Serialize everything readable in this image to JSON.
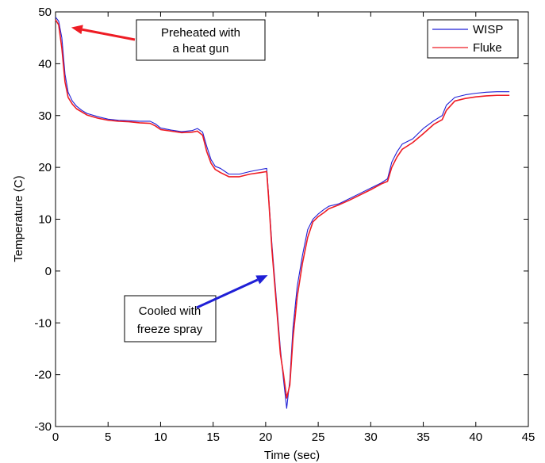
{
  "chart_data": {
    "type": "line",
    "xlabel": "Time (sec)",
    "ylabel": "Temperature (C)",
    "xlim": [
      0,
      45
    ],
    "ylim": [
      -30,
      50
    ],
    "xticks": [
      0,
      5,
      10,
      15,
      20,
      25,
      30,
      35,
      40,
      45
    ],
    "yticks": [
      -30,
      -20,
      -10,
      0,
      10,
      20,
      30,
      40,
      50
    ],
    "grid": false,
    "legend_position": "top-right",
    "series": [
      {
        "name": "WISP",
        "color": "#1f1fd6",
        "x": [
          0,
          0.3,
          0.6,
          0.9,
          1.2,
          1.6,
          2.0,
          2.5,
          3,
          4,
          5,
          6,
          7,
          8,
          9,
          9.5,
          10,
          11,
          12,
          13,
          13.5,
          14,
          14.4,
          14.8,
          15.2,
          15.7,
          16.5,
          17.5,
          18.5,
          19.5,
          20.1,
          20.3,
          20.6,
          21.0,
          21.4,
          21.7,
          22.0,
          22.3,
          22.6,
          23.0,
          23.5,
          24.0,
          24.5,
          25.0,
          25.5,
          26,
          27,
          28,
          29,
          30,
          31,
          31.6,
          32,
          32.5,
          33,
          34,
          35,
          36,
          36.8,
          37.2,
          38,
          39,
          40,
          41,
          42,
          43.2
        ],
        "y": [
          49,
          48.2,
          45,
          38,
          34.5,
          32.8,
          31.8,
          31,
          30.4,
          29.8,
          29.3,
          29.1,
          29,
          28.9,
          28.9,
          28.4,
          27.6,
          27.2,
          26.9,
          27.1,
          27.5,
          26.8,
          24,
          21.5,
          20.2,
          19.8,
          18.7,
          18.7,
          19.2,
          19.6,
          19.8,
          14,
          5,
          -5,
          -15,
          -21,
          -26.5,
          -21,
          -11,
          -3,
          3,
          8,
          10,
          11,
          11.8,
          12.5,
          13,
          14,
          15,
          16,
          17,
          17.8,
          21,
          23,
          24.5,
          25.5,
          27.5,
          29,
          30,
          32,
          33.5,
          34,
          34.3,
          34.5,
          34.6,
          34.6
        ]
      },
      {
        "name": "Fluke",
        "color": "#ee1c24",
        "x": [
          0,
          0.3,
          0.6,
          0.9,
          1.2,
          1.6,
          2.0,
          2.5,
          3,
          4,
          5,
          6,
          7,
          8,
          9,
          9.5,
          10,
          11,
          12,
          13,
          13.5,
          14,
          14.4,
          14.8,
          15.2,
          15.7,
          16.5,
          17.5,
          18.5,
          19.5,
          20.1,
          20.3,
          20.6,
          21.0,
          21.4,
          21.7,
          22.0,
          22.3,
          22.6,
          23.0,
          23.5,
          24.0,
          24.5,
          25.0,
          25.5,
          26,
          27,
          28,
          29,
          30,
          31,
          31.6,
          32,
          32.5,
          33,
          34,
          35,
          36,
          36.8,
          37.2,
          38,
          39,
          40,
          41,
          42,
          43.2
        ],
        "y": [
          48.5,
          47.5,
          43,
          36.5,
          33.5,
          32.2,
          31.3,
          30.7,
          30.1,
          29.5,
          29.1,
          28.9,
          28.8,
          28.6,
          28.5,
          28,
          27.3,
          27,
          26.7,
          26.8,
          27,
          26.2,
          23,
          20.8,
          19.6,
          19,
          18.2,
          18.2,
          18.7,
          19,
          19.2,
          13.5,
          4,
          -6,
          -16,
          -20,
          -24.5,
          -22,
          -13,
          -5,
          1.5,
          6.5,
          9.5,
          10.5,
          11.2,
          12,
          12.8,
          13.7,
          14.7,
          15.7,
          16.8,
          17.3,
          20,
          22,
          23.5,
          24.8,
          26.5,
          28.3,
          29.2,
          31,
          32.8,
          33.3,
          33.6,
          33.8,
          33.9,
          33.9
        ]
      }
    ],
    "annotations": [
      {
        "lines": [
          "Preheated with",
          "a heat gun"
        ],
        "arrow_color": "#ee1c24",
        "target": [
          1.5,
          47
        ]
      },
      {
        "lines": [
          "Cooled with",
          "freeze spray"
        ],
        "arrow_color": "#1f1fd6",
        "target": [
          20.2,
          -0.8
        ]
      }
    ]
  }
}
